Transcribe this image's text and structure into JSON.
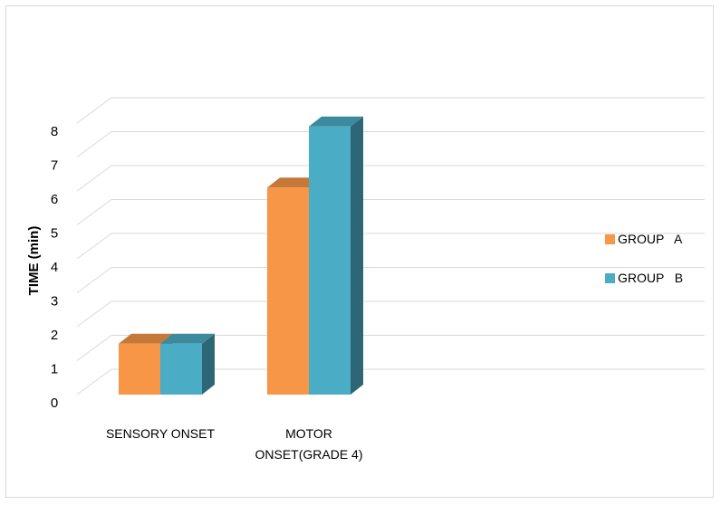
{
  "chart_data": {
    "type": "bar3d",
    "y_label": "TIME (min)",
    "categories": [
      "SENSORY ONSET",
      "MOTOR ONSET(GRADE 4)"
    ],
    "series": [
      {
        "name": "GROUP   A",
        "color": "#f79646",
        "values": [
          1.5,
          6.1
        ]
      },
      {
        "name": "GROUP   B",
        "color": "#4bacc6",
        "values": [
          1.5,
          7.9
        ]
      }
    ],
    "ylim": [
      0,
      8
    ],
    "yticks": [
      0,
      1,
      2,
      3,
      4,
      5,
      6,
      7,
      8
    ],
    "grid": true,
    "legend": "right"
  }
}
